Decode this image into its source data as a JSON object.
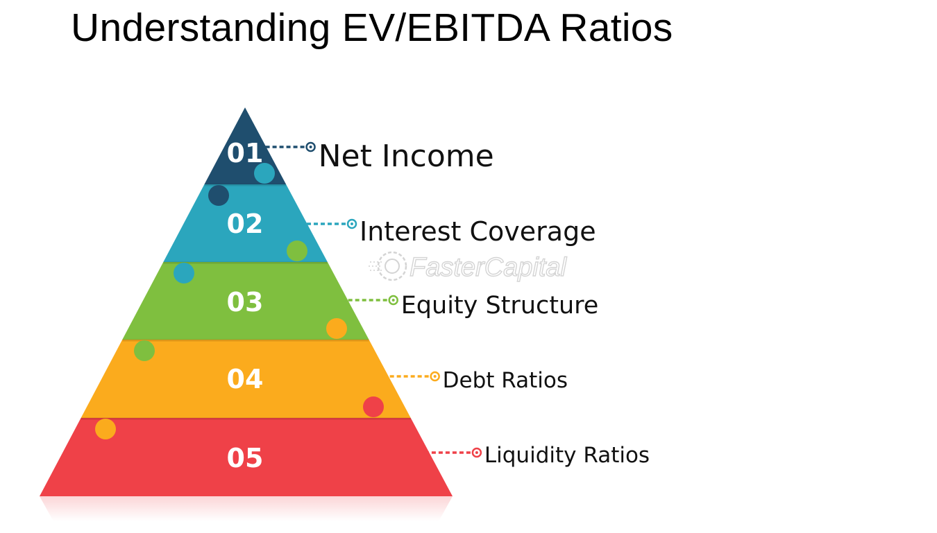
{
  "title": "Understanding EV/EBITDA Ratios",
  "watermark": "FasterCapital",
  "pyramid": {
    "levels": [
      {
        "number": "01",
        "label": "Net Income",
        "color": "#1f4e6e"
      },
      {
        "number": "02",
        "label": "Interest Coverage",
        "color": "#2ba6bd"
      },
      {
        "number": "03",
        "label": "Equity Structure",
        "color": "#7fbf3f"
      },
      {
        "number": "04",
        "label": "Debt Ratios",
        "color": "#fbab1d"
      },
      {
        "number": "05",
        "label": "Liquidity Ratios",
        "color": "#ef4148"
      }
    ]
  }
}
